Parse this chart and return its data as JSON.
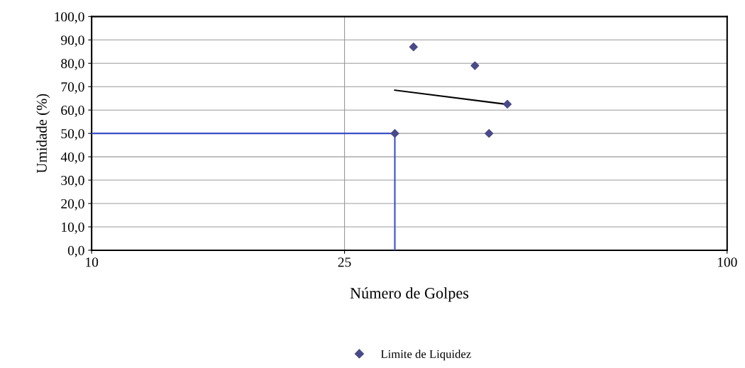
{
  "chart_data": {
    "type": "scatter",
    "xlabel": "Número de Golpes",
    "ylabel": "Umidade (%)",
    "log": "x",
    "xlim": [
      10,
      100
    ],
    "xticks": [
      10,
      25,
      100
    ],
    "ylim": [
      0,
      100
    ],
    "yticks": [
      {
        "value": 0,
        "label": "0,0"
      },
      {
        "value": 10,
        "label": "10,0"
      },
      {
        "value": 20,
        "label": "20,0"
      },
      {
        "value": 30,
        "label": "30,0"
      },
      {
        "value": 40,
        "label": "40,0"
      },
      {
        "value": 50,
        "label": "50,0"
      },
      {
        "value": 60,
        "label": "60,0"
      },
      {
        "value": 70,
        "label": "70,0"
      },
      {
        "value": 80,
        "label": "80,0"
      },
      {
        "value": 90,
        "label": "90,0"
      },
      {
        "value": 100,
        "label": "100,0"
      }
    ],
    "grid": true,
    "legend": "bottom",
    "marker": "diamond",
    "series": [
      {
        "name": "Limite de Liquidez",
        "color": "#4a4a8a",
        "x": [
          30.0,
          32.1,
          40.1,
          42.2,
          45.1
        ],
        "values": [
          50,
          87,
          79,
          50,
          62.5
        ]
      },
      {
        "type": "line",
        "marker": "none",
        "color": "#000000",
        "x": [
          30,
          45.1
        ],
        "values": [
          68.5,
          62.4
        ]
      },
      {
        "type": "line",
        "marker": "none",
        "color": "#3a4fc8",
        "x": [
          10,
          30,
          30
        ],
        "values": [
          50,
          50,
          0
        ]
      }
    ]
  }
}
